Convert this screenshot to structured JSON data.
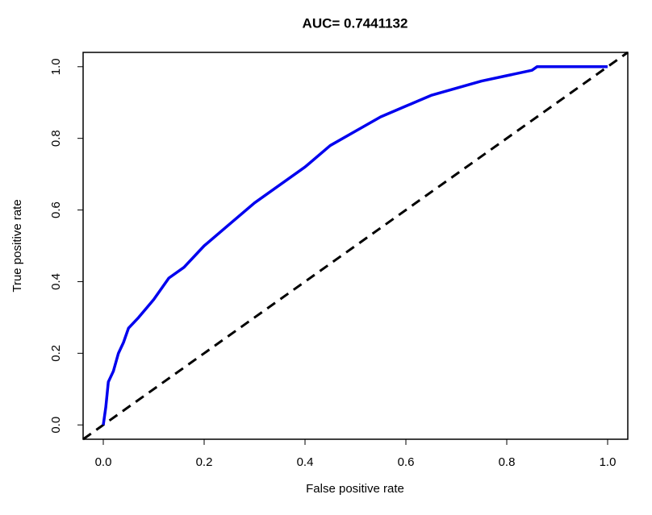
{
  "chart_data": {
    "type": "line",
    "title": "AUC= 0.7441132",
    "x_label": "False positive rate",
    "y_label": "True positive rate",
    "x": [
      0,
      0.005,
      0.01,
      0.02,
      0.03,
      0.04,
      0.05,
      0.07,
      0.1,
      0.13,
      0.16,
      0.2,
      0.25,
      0.3,
      0.35,
      0.4,
      0.45,
      0.5,
      0.55,
      0.6,
      0.65,
      0.7,
      0.75,
      0.8,
      0.85,
      0.86,
      1.0
    ],
    "values": [
      0,
      0.05,
      0.12,
      0.15,
      0.2,
      0.23,
      0.27,
      0.3,
      0.35,
      0.41,
      0.44,
      0.5,
      0.56,
      0.62,
      0.67,
      0.72,
      0.78,
      0.82,
      0.86,
      0.89,
      0.92,
      0.94,
      0.96,
      0.975,
      0.99,
      1.0,
      1.0
    ],
    "color": "#0000ee",
    "xlim": [
      -0.04,
      1.04
    ],
    "ylim": [
      -0.04,
      1.04
    ],
    "xticks": [
      {
        "value": 0,
        "label": "0.0"
      },
      0.2,
      0.4,
      0.6,
      0.8,
      {
        "value": 1,
        "label": "1.0"
      }
    ],
    "yticks": [
      {
        "value": 0,
        "label": "0.0"
      },
      0.2,
      0.4,
      0.6,
      0.8,
      {
        "value": 1,
        "label": "1.0"
      }
    ],
    "diagonal": true,
    "grid": false
  }
}
